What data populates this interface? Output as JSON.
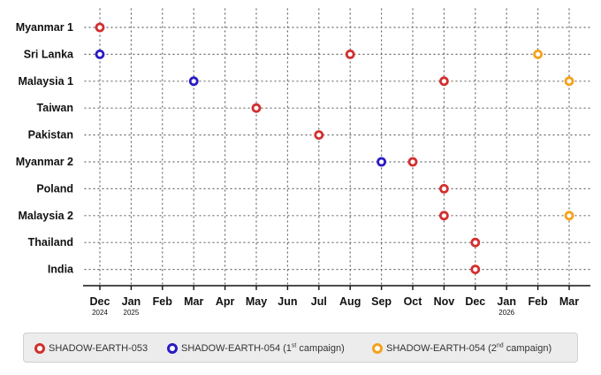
{
  "chart_data": {
    "type": "scatter",
    "title": "",
    "xlabel": "",
    "ylabel": "",
    "x_ticks": [
      {
        "label": "Dec",
        "sub": "2024"
      },
      {
        "label": "Jan",
        "sub": "2025"
      },
      {
        "label": "Feb",
        "sub": ""
      },
      {
        "label": "Mar",
        "sub": ""
      },
      {
        "label": "Apr",
        "sub": ""
      },
      {
        "label": "May",
        "sub": ""
      },
      {
        "label": "Jun",
        "sub": ""
      },
      {
        "label": "Jul",
        "sub": ""
      },
      {
        "label": "Aug",
        "sub": ""
      },
      {
        "label": "Sep",
        "sub": ""
      },
      {
        "label": "Oct",
        "sub": ""
      },
      {
        "label": "Nov",
        "sub": ""
      },
      {
        "label": "Dec",
        "sub": ""
      },
      {
        "label": "Jan",
        "sub": "2026"
      },
      {
        "label": "Feb",
        "sub": ""
      },
      {
        "label": "Mar",
        "sub": ""
      }
    ],
    "categories": [
      "Myanmar 1",
      "Sri Lanka",
      "Malaysia 1",
      "Taiwan",
      "Pakistan",
      "Myanmar 2",
      "Poland",
      "Malaysia 2",
      "Thailand",
      "India"
    ],
    "grid": true,
    "legend_position": "bottom",
    "series": [
      {
        "name": "SHADOW-EARTH-053",
        "color": "#d32f2f",
        "points": [
          {
            "category": "Myanmar 1",
            "x": "2024-12"
          },
          {
            "category": "Sri Lanka",
            "x": "2025-08"
          },
          {
            "category": "Malaysia 1",
            "x": "2025-11"
          },
          {
            "category": "Taiwan",
            "x": "2025-05"
          },
          {
            "category": "Pakistan",
            "x": "2025-07"
          },
          {
            "category": "Myanmar 2",
            "x": "2025-10"
          },
          {
            "category": "Poland",
            "x": "2025-11"
          },
          {
            "category": "Malaysia 2",
            "x": "2025-11"
          },
          {
            "category": "Thailand",
            "x": "2025-12"
          },
          {
            "category": "India",
            "x": "2025-12"
          }
        ]
      },
      {
        "name": "SHADOW-EARTH-054 (1st campaign)",
        "color": "#2a1bc4",
        "points": [
          {
            "category": "Sri Lanka",
            "x": "2024-12"
          },
          {
            "category": "Malaysia 1",
            "x": "2025-03"
          },
          {
            "category": "Myanmar 2",
            "x": "2025-09"
          }
        ]
      },
      {
        "name": "SHADOW-EARTH-054 (2nd campaign)",
        "color": "#f4a21c",
        "points": [
          {
            "category": "Sri Lanka",
            "x": "2026-02"
          },
          {
            "category": "Malaysia 1",
            "x": "2026-03"
          },
          {
            "category": "Malaysia 2",
            "x": "2026-03"
          }
        ]
      }
    ]
  },
  "legend": [
    {
      "prefix": "SHADOW-EARTH-053",
      "sup": "",
      "suffix": "",
      "color": "#d32f2f"
    },
    {
      "prefix": "SHADOW-EARTH-054 (1",
      "sup": "st",
      "suffix": " campaign)",
      "color": "#2a1bc4"
    },
    {
      "prefix": "SHADOW-EARTH-054 (2",
      "sup": "nd",
      "suffix": " campaign)",
      "color": "#f4a21c"
    }
  ]
}
